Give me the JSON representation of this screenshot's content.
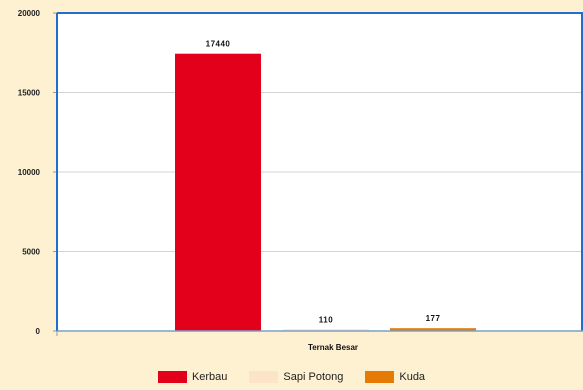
{
  "chart_data": {
    "type": "bar",
    "categories": [
      "Ternak Besar"
    ],
    "xlabel": "Ternak Besar",
    "ylabel": "",
    "ylim": [
      0,
      20000
    ],
    "yticks": [
      "0",
      "5000",
      "10000",
      "15000",
      "20000"
    ],
    "grid": true,
    "legend_position": "bottom",
    "series": [
      {
        "name": "Kerbau",
        "values": [
          17440
        ],
        "label": "17440",
        "color": "#e3001b"
      },
      {
        "name": "Sapi Potong",
        "values": [
          110
        ],
        "label": "110",
        "color": "#fbe4c8"
      },
      {
        "name": "Kuda",
        "values": [
          177
        ],
        "label": "177",
        "color": "#e67a06"
      }
    ]
  }
}
